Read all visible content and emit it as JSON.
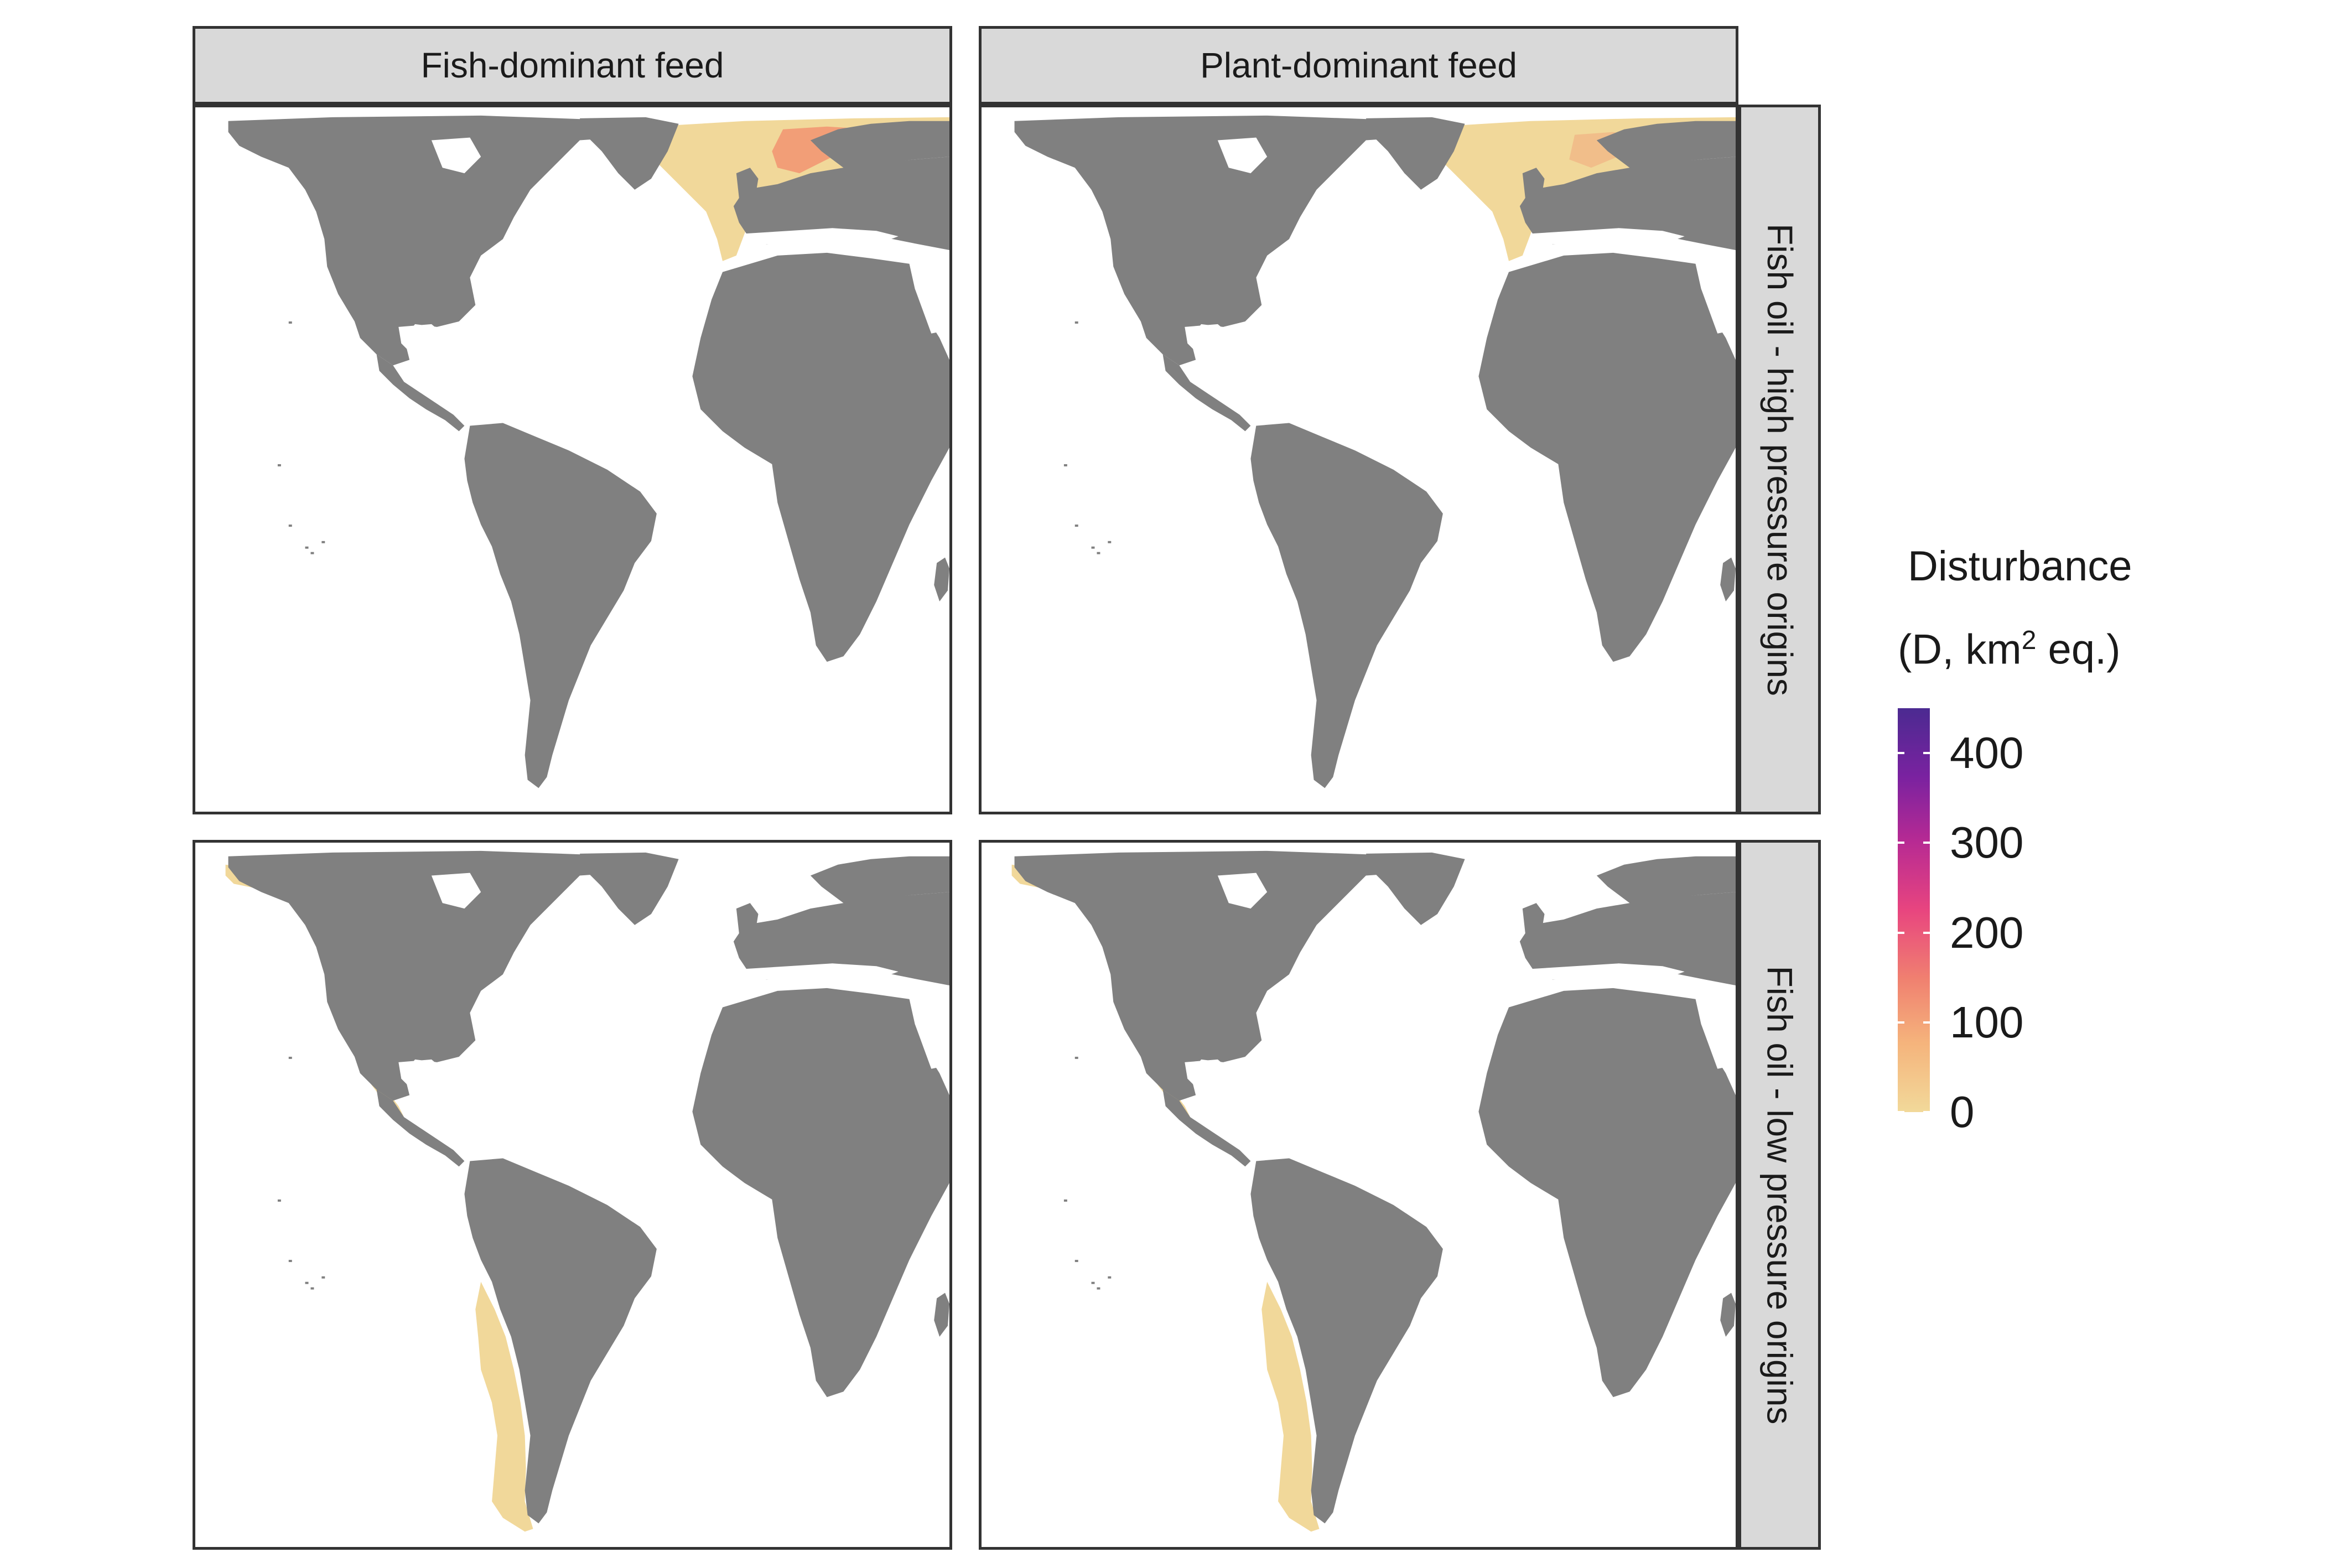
{
  "facets": {
    "columns": [
      "Fish-dominant feed",
      "Plant-dominant feed"
    ],
    "rows": [
      "Fish oil - high pressure origins",
      "Fish oil - low pressure origins"
    ]
  },
  "panels": [
    {
      "col": "Fish-dominant feed",
      "row": "Fish oil - high pressure origins",
      "hotspot_region": "North Atlantic / North Sea",
      "intensity": "high"
    },
    {
      "col": "Plant-dominant feed",
      "row": "Fish oil - high pressure origins",
      "hotspot_region": "North Atlantic / North Sea",
      "intensity": "moderate"
    },
    {
      "col": "Fish-dominant feed",
      "row": "Fish oil - low pressure origins",
      "hotspot_region": "Eastern Pacific coast",
      "intensity": "low"
    },
    {
      "col": "Plant-dominant feed",
      "row": "Fish oil - low pressure origins",
      "hotspot_region": "Eastern Pacific coast",
      "intensity": "low"
    }
  ],
  "legend": {
    "title_line1": "Disturbance",
    "title_line2_prefix": "(D, km",
    "title_line2_sup": "2",
    "title_line2_suffix": " eq.)",
    "ticks": [
      {
        "label": "400",
        "value": 400
      },
      {
        "label": "300",
        "value": 300
      },
      {
        "label": "200",
        "value": 200
      },
      {
        "label": "100",
        "value": 100
      },
      {
        "label": "0",
        "value": 0
      }
    ],
    "range": [
      0,
      450
    ],
    "colors": [
      "#f2d99a",
      "#f5b47c",
      "#f08070",
      "#e8457f",
      "#b72a93",
      "#7a22a0",
      "#4b2a91"
    ]
  },
  "colors": {
    "land": "#808080",
    "ocean": "#ffffff",
    "low_disturbance": "#f1d89a",
    "mid_disturbance": "#f2906e",
    "high_disturbance": "#e8506a",
    "strip_bg": "#d9d9d9"
  }
}
